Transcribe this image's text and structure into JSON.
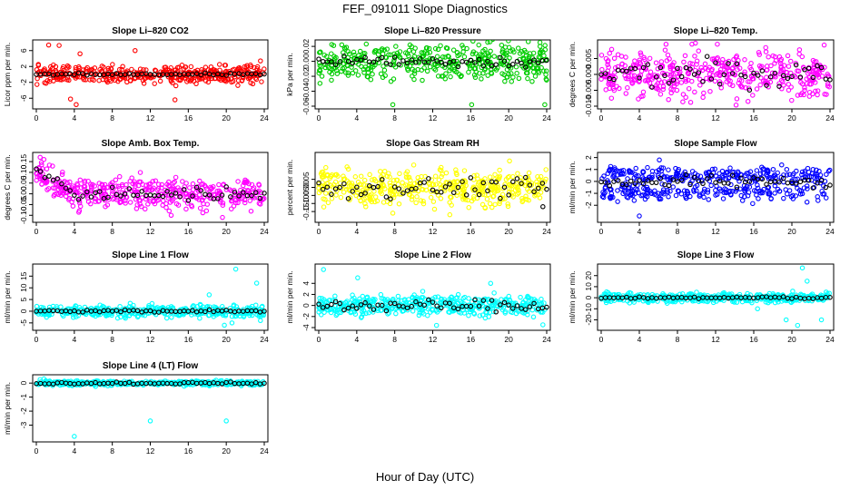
{
  "figure": {
    "title": "FEF_091011  Slope Diagnostics",
    "xlabel": "Hour of Day (UTC)"
  },
  "chart_data": [
    {
      "type": "scatter",
      "title": "Slope Li–820 CO2",
      "ylabel": "Licor ppm per min.",
      "xlim": [
        0,
        24
      ],
      "ylim": [
        -8,
        8
      ],
      "xticks": [
        0,
        4,
        8,
        12,
        16,
        20,
        24
      ],
      "yticks": [
        -6,
        -2,
        2,
        6
      ],
      "color": "#ff0000",
      "series": [
        {
          "color": "#ff0000",
          "spread": 1.1,
          "outliers": [
            [
              1.3,
              7.4
            ],
            [
              2.4,
              7.3
            ],
            [
              4.6,
              5.2
            ],
            [
              3.6,
              -6.2
            ],
            [
              4.2,
              -7.6
            ],
            [
              10.4,
              6.0
            ],
            [
              14.6,
              -6.4
            ],
            [
              23.6,
              3.4
            ]
          ]
        },
        {
          "color": "#000000",
          "spread": 0.15
        }
      ]
    },
    {
      "type": "scatter",
      "title": "Slope Li–820 Pressure",
      "ylabel": "kPa per min.",
      "xlim": [
        0,
        24
      ],
      "ylim": [
        -0.06,
        0.025
      ],
      "xticks": [
        0,
        4,
        8,
        12,
        16,
        20,
        24
      ],
      "yticks": [
        -0.06,
        -0.04,
        -0.02,
        0.0,
        0.02
      ],
      "color": "#00cc00",
      "series": [
        {
          "color": "#00cc00",
          "spread": 0.012,
          "outliers": [
            [
              7.8,
              -0.058
            ],
            [
              16.1,
              -0.058
            ],
            [
              23.8,
              -0.058
            ],
            [
              23.3,
              0.02
            ],
            [
              11.4,
              0.018
            ]
          ]
        },
        {
          "color": "#000000",
          "spread": 0.004
        }
      ]
    },
    {
      "type": "scatter",
      "title": "Slope Li–820 Temp.",
      "ylabel": "degrees C per min.",
      "xlim": [
        0,
        24
      ],
      "ylim": [
        -0.01,
        0.01
      ],
      "xticks": [
        0,
        4,
        8,
        12,
        16,
        20,
        24
      ],
      "yticks": [
        -0.01,
        -0.005,
        0.0,
        0.005
      ],
      "color": "#ff00ff",
      "series": [
        {
          "color": "#ff00ff",
          "spread": 0.0035,
          "outliers": [
            [
              6.8,
              0.0095
            ],
            [
              15.4,
              -0.0085
            ],
            [
              2.6,
              -0.006
            ]
          ]
        },
        {
          "color": "#000000",
          "spread": 0.002
        }
      ]
    },
    {
      "type": "scatter",
      "title": "Slope Amb. Box Temp.",
      "ylabel": "degrees C per min.",
      "xlim": [
        0,
        24
      ],
      "ylim": [
        -0.12,
        0.18
      ],
      "xticks": [
        0,
        4,
        8,
        12,
        16,
        20,
        24
      ],
      "yticks": [
        -0.1,
        -0.05,
        0.0,
        0.05,
        0.1,
        0.15
      ],
      "color": "#ff00ff",
      "series": [
        {
          "color": "#ff00ff",
          "spread": 0.035,
          "outliers": [
            [
              0.4,
              0.17
            ],
            [
              0.8,
              0.16
            ],
            [
              19.6,
              -0.11
            ],
            [
              14.2,
              -0.1
            ]
          ]
        },
        {
          "color": "#000000",
          "spread": 0.015
        }
      ]
    },
    {
      "type": "scatter",
      "title": "Slope Gas Stream RH",
      "ylabel": "percent per min.",
      "xlim": [
        0,
        24
      ],
      "ylim": [
        -0.2,
        0.2
      ],
      "xticks": [
        0,
        4,
        8,
        12,
        16,
        20,
        24
      ],
      "yticks": [
        -0.15,
        -0.1,
        -0.05,
        0.0,
        0.05
      ],
      "color": "#ffff00",
      "series": [
        {
          "color": "#ffff00",
          "spread": 0.055,
          "outliers": [
            [
              7.8,
              -0.16
            ],
            [
              13.8,
              -0.17
            ]
          ]
        },
        {
          "color": "#000000",
          "spread": 0.03,
          "outliers": [
            [
              23.6,
              -0.12
            ]
          ]
        }
      ]
    },
    {
      "type": "scatter",
      "title": "Slope Sample Flow",
      "ylabel": "ml/min per min.",
      "xlim": [
        0,
        24
      ],
      "ylim": [
        -3.2,
        2.2
      ],
      "xticks": [
        0,
        4,
        8,
        12,
        16,
        20,
        24
      ],
      "yticks": [
        -2,
        -1,
        0,
        1,
        2
      ],
      "color": "#0000ff",
      "series": [
        {
          "color": "#0000ff",
          "spread": 0.35,
          "bands": [
            0.5,
            -0.9
          ],
          "outliers": [
            [
              4.0,
              -2.9
            ],
            [
              6.1,
              1.8
            ]
          ]
        },
        {
          "color": "#000000",
          "spread": 0.25
        }
      ]
    },
    {
      "type": "scatter",
      "title": "Slope Line 1 Flow",
      "ylabel": "ml/min per min.",
      "xlim": [
        0,
        24
      ],
      "ylim": [
        -7,
        19
      ],
      "xticks": [
        0,
        4,
        8,
        12,
        16,
        20,
        24
      ],
      "yticks": [
        -5,
        0,
        5,
        10,
        15
      ],
      "color": "#00ffff",
      "series": [
        {
          "color": "#00ffff",
          "spread": 1.2,
          "outliers": [
            [
              21.0,
              18
            ],
            [
              19.8,
              -6
            ],
            [
              20.6,
              -5
            ],
            [
              23.6,
              -4
            ],
            [
              18.2,
              7
            ],
            [
              23.2,
              12
            ],
            [
              17.2,
              -3
            ]
          ]
        },
        {
          "color": "#000000",
          "spread": 0.3
        }
      ]
    },
    {
      "type": "scatter",
      "title": "Slope Line 2 Flow",
      "ylabel": "ml/min per min.",
      "xlim": [
        0,
        24
      ],
      "ylim": [
        -4,
        7
      ],
      "xticks": [
        0,
        4,
        8,
        12,
        16,
        20,
        24
      ],
      "yticks": [
        -4,
        -2,
        0,
        2,
        4
      ],
      "color": "#00ffff",
      "series": [
        {
          "color": "#00ffff",
          "spread": 0.9,
          "outliers": [
            [
              0.5,
              6.5
            ],
            [
              4.1,
              5.0
            ],
            [
              12.4,
              -3.6
            ],
            [
              18.1,
              4.0
            ],
            [
              23.6,
              -3.5
            ]
          ]
        },
        {
          "color": "#000000",
          "spread": 0.5
        }
      ]
    },
    {
      "type": "scatter",
      "title": "Slope Line 3 Flow",
      "ylabel": "ml/min per min.",
      "xlim": [
        0,
        24
      ],
      "ylim": [
        -27,
        28
      ],
      "xticks": [
        0,
        4,
        8,
        12,
        16,
        20,
        24
      ],
      "yticks": [
        -20,
        -10,
        0,
        10,
        20
      ],
      "color": "#00ffff",
      "series": [
        {
          "color": "#00ffff",
          "spread": 2.0,
          "outliers": [
            [
              21.1,
              27
            ],
            [
              20.6,
              -25
            ],
            [
              19.4,
              -20
            ],
            [
              23.1,
              -20
            ],
            [
              21.6,
              15
            ],
            [
              16.4,
              -10
            ]
          ]
        },
        {
          "color": "#000000",
          "spread": 0.6
        }
      ]
    },
    {
      "type": "scatter",
      "title": "Slope Line 4 (LT) Flow",
      "ylabel": "ml/min per min.",
      "xlim": [
        0,
        24
      ],
      "ylim": [
        -4,
        0.4
      ],
      "xticks": [
        0,
        4,
        8,
        12,
        16,
        20,
        24
      ],
      "yticks": [
        -3,
        -2,
        -1,
        0
      ],
      "color": "#00ffff",
      "series": [
        {
          "color": "#00ffff",
          "spread": 0.08,
          "outliers": [
            [
              4.0,
              -3.8
            ],
            [
              12.0,
              -2.7
            ],
            [
              20.0,
              -2.7
            ],
            [
              0.4,
              0.25
            ],
            [
              0.8,
              0.3
            ]
          ]
        },
        {
          "color": "#000000",
          "spread": 0.04
        }
      ]
    }
  ]
}
